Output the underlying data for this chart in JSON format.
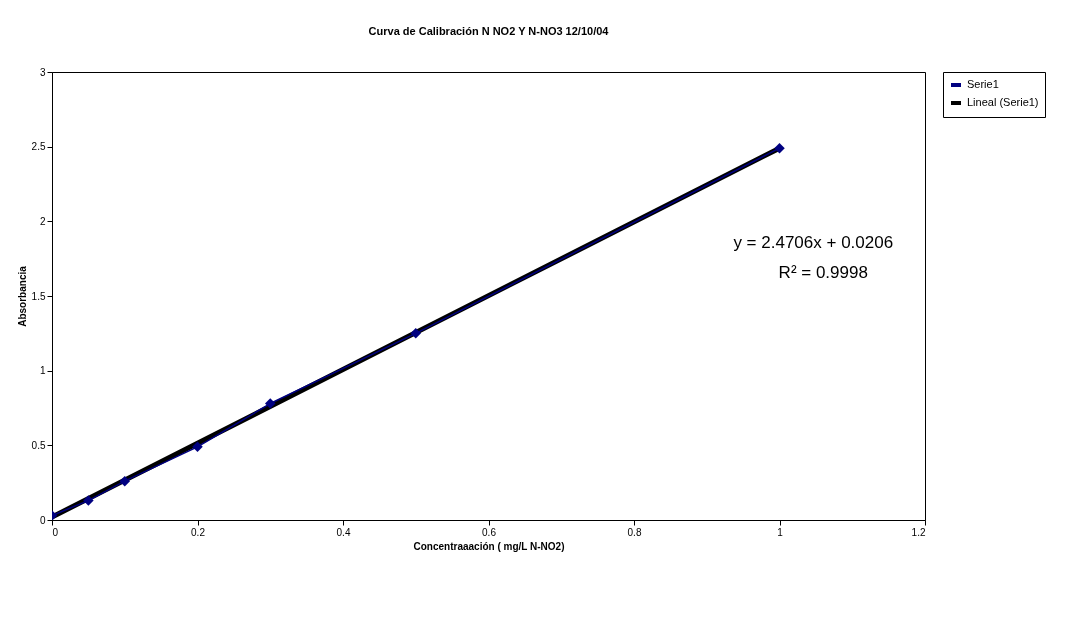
{
  "chart_data": {
    "type": "line",
    "title": "Curva de Calibración N NO2 Y N-NO3 12/10/04",
    "xlabel": "Concentraaación ( mg/L N-NO2)",
    "ylabel": "Absorbancia",
    "xlim": [
      0,
      1.2
    ],
    "xticks": [
      0,
      0.2,
      0.4,
      0.6,
      0.8,
      1,
      1.2
    ],
    "ylim": [
      0,
      3
    ],
    "yticks": [
      0,
      0.5,
      1,
      1.5,
      2,
      2.5,
      3
    ],
    "grid": false,
    "legend": "right",
    "series": [
      {
        "name": "Serie1",
        "color": "#000080",
        "marker": "diamond",
        "x": [
          0,
          0.05,
          0.1,
          0.2,
          0.3,
          0.5,
          1
        ],
        "values": [
          0.03,
          0.13,
          0.26,
          0.49,
          0.78,
          1.25,
          2.49
        ]
      },
      {
        "name": "Lineal (Serie1)",
        "color": "#000000",
        "marker": "none",
        "x": [
          0,
          1
        ],
        "values": [
          0.02,
          2.49
        ]
      }
    ],
    "annotations": [
      "y = 2.4706x + 0.0206",
      "R² = 0.9998"
    ]
  }
}
